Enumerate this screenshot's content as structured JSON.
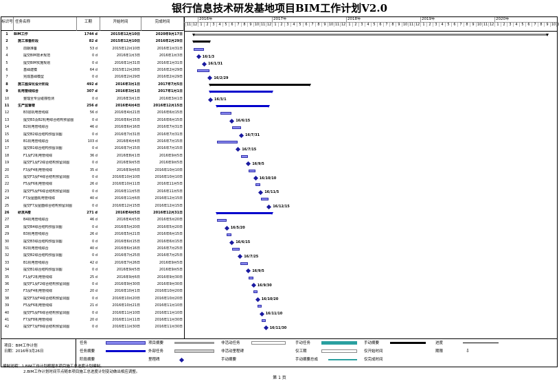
{
  "title": "银行信息技术研发基地项目BIM工作计划V2.0",
  "header": {
    "id": "标识号",
    "name": "任务名称",
    "duration": "工期",
    "start": "开始时间",
    "finish": "完成时间"
  },
  "years": [
    "2016年",
    "2017年",
    "2018年",
    "2019年",
    "2020年"
  ],
  "months": [
    "11",
    "12",
    "1",
    "2",
    "3",
    "4",
    "5",
    "6",
    "7",
    "8",
    "9",
    "10",
    "11",
    "12",
    "1",
    "2",
    "3",
    "4",
    "5",
    "6",
    "7",
    "8",
    "9",
    "10",
    "11",
    "12",
    "1",
    "2",
    "3",
    "4",
    "5",
    "6",
    "7",
    "8",
    "9",
    "10",
    "11",
    "12",
    "1",
    "2",
    "3",
    "4",
    "5",
    "6",
    "7",
    "8",
    "9",
    "10",
    "11",
    "12",
    "1",
    "2",
    "3",
    "4",
    "5",
    "6",
    "7",
    "8",
    "9",
    "10",
    "11"
  ],
  "tasks": [
    {
      "id": "1",
      "name": "BIM工作",
      "dur": "1744 d",
      "start": "2015年12月10日",
      "finish": "2020年9月17日",
      "bold": true
    },
    {
      "id": "2",
      "name": "施工准备阶段",
      "dur": "82 d",
      "start": "2015年12月10日",
      "finish": "2016年2月29日",
      "bold": true
    },
    {
      "id": "3",
      "name": "前期准备",
      "dur": "53 d",
      "start": "2015年12月10日",
      "finish": "2016年1月31日"
    },
    {
      "id": "4",
      "name": "提交BIM技术规范",
      "dur": "0 d",
      "start": "2016年1月3日",
      "finish": "2016年1月3日"
    },
    {
      "id": "5",
      "name": "提交BIM实施规划",
      "dur": "0 d",
      "start": "2016年1月31日",
      "finish": "2016年1月31日"
    },
    {
      "id": "6",
      "name": "基础建模",
      "dur": "64 d",
      "start": "2015年12月28日",
      "finish": "2016年2月29日"
    },
    {
      "id": "7",
      "name": "完成基础模型",
      "dur": "0 d",
      "start": "2016年2月29日",
      "finish": "2016年2月29日"
    },
    {
      "id": "8",
      "name": "施工图深化设计阶段",
      "dur": "492 d",
      "start": "2016年3月1日",
      "finish": "2017年7月5日",
      "bold": true
    },
    {
      "id": "9",
      "name": "机电管线综合",
      "dur": "307 d",
      "start": "2016年3月1日",
      "finish": "2017年1月1日",
      "bold": true
    },
    {
      "id": "10",
      "name": "整理全专业碰撞检测",
      "dur": "0 d",
      "start": "2016年3月1日",
      "finish": "2016年3月1日"
    },
    {
      "id": "11",
      "name": "生产监督楼",
      "dur": "256 d",
      "start": "2016年4月4日",
      "finish": "2016年12月15日",
      "bold": true
    },
    {
      "id": "12",
      "name": "B3层机电管线综",
      "dur": "56 d",
      "start": "2016年4月21日",
      "finish": "2016年6月15日"
    },
    {
      "id": "13",
      "name": "提交B3及B2机电综合结构预留图",
      "dur": "0 d",
      "start": "2016年6月15日",
      "finish": "2016年6月15日"
    },
    {
      "id": "14",
      "name": "B2机电管线综合",
      "dur": "46 d",
      "start": "2016年6月16日",
      "finish": "2016年7月31日"
    },
    {
      "id": "15",
      "name": "提交B2综合结构预留洞图",
      "dur": "0 d",
      "start": "2016年7月31日",
      "finish": "2016年7月31日"
    },
    {
      "id": "16",
      "name": "B1机电管线综合",
      "dur": "103 d",
      "start": "2016年4月4日",
      "finish": "2016年7月15日"
    },
    {
      "id": "17",
      "name": "提交B1综合结构预留洞图",
      "dur": "0 d",
      "start": "2016年7月15日",
      "finish": "2016年7月15日"
    },
    {
      "id": "18",
      "name": "F1及F2机电管线综",
      "dur": "36 d",
      "start": "2016年8月1日",
      "finish": "2016年9月5日"
    },
    {
      "id": "19",
      "name": "提交F1及F2综合结构预留洞图",
      "dur": "0 d",
      "start": "2016年9月5日",
      "finish": "2016年9月5日"
    },
    {
      "id": "20",
      "name": "F3及F4机电管线综",
      "dur": "35 d",
      "start": "2016年9月6日",
      "finish": "2016年10月10日"
    },
    {
      "id": "21",
      "name": "提交F3及F4综合结构预留洞图",
      "dur": "0 d",
      "start": "2016年10月10日",
      "finish": "2016年10月10日"
    },
    {
      "id": "22",
      "name": "F5及F6机电管线综",
      "dur": "26 d",
      "start": "2016年10月11日",
      "finish": "2016年11月5日"
    },
    {
      "id": "23",
      "name": "提交F5及F6综合结构预留洞图",
      "dur": "0 d",
      "start": "2016年11月5日",
      "finish": "2016年11月5日"
    },
    {
      "id": "24",
      "name": "F7及屋面机电管线综",
      "dur": "40 d",
      "start": "2016年11月6日",
      "finish": "2016年12月15日"
    },
    {
      "id": "25",
      "name": "提交F7及屋面综合结构预留洞图",
      "dur": "0 d",
      "start": "2016年12月15日",
      "finish": "2016年12月15日"
    },
    {
      "id": "26",
      "name": "研发A楼",
      "dur": "271 d",
      "start": "2016年4月5日",
      "finish": "2016年12月31日",
      "bold": true
    },
    {
      "id": "27",
      "name": "B4机电管线综合",
      "dur": "46 d",
      "start": "2016年4月5日",
      "finish": "2016年5月20日"
    },
    {
      "id": "28",
      "name": "提交B4综合结构预留洞图",
      "dur": "0 d",
      "start": "2016年5月20日",
      "finish": "2016年5月20日"
    },
    {
      "id": "29",
      "name": "B3机电管线综合",
      "dur": "26 d",
      "start": "2016年5月21日",
      "finish": "2016年6月15日"
    },
    {
      "id": "30",
      "name": "提交B3综合结构预留洞图",
      "dur": "0 d",
      "start": "2016年6月15日",
      "finish": "2016年6月15日"
    },
    {
      "id": "31",
      "name": "B2机电管线综合",
      "dur": "40 d",
      "start": "2016年6月16日",
      "finish": "2016年7月25日"
    },
    {
      "id": "32",
      "name": "提交B2综合结构预留洞图",
      "dur": "0 d",
      "start": "2016年7月25日",
      "finish": "2016年7月25日"
    },
    {
      "id": "33",
      "name": "B1机电管线综合",
      "dur": "42 d",
      "start": "2016年7月26日",
      "finish": "2016年9月5日"
    },
    {
      "id": "34",
      "name": "提交B1综合结构预留洞图",
      "dur": "0 d",
      "start": "2016年9月5日",
      "finish": "2016年9月5日"
    },
    {
      "id": "35",
      "name": "F1及F2机电管线综",
      "dur": "25 d",
      "start": "2016年9月6日",
      "finish": "2016年9月30日"
    },
    {
      "id": "36",
      "name": "提交F1及F2综合结构预留洞图",
      "dur": "0 d",
      "start": "2016年9月30日",
      "finish": "2016年9月30日"
    },
    {
      "id": "37",
      "name": "F3及F4机电管线综",
      "dur": "20 d",
      "start": "2016年10月1日",
      "finish": "2016年10月20日"
    },
    {
      "id": "38",
      "name": "提交F3及F4综合结构预留洞图",
      "dur": "0 d",
      "start": "2016年10月20日",
      "finish": "2016年10月20日"
    },
    {
      "id": "39",
      "name": "F5及F6机电管线综",
      "dur": "21 d",
      "start": "2016年10月21日",
      "finish": "2016年11月10日"
    },
    {
      "id": "40",
      "name": "提交F5及F6综合结构预留洞图",
      "dur": "0 d",
      "start": "2016年11月10日",
      "finish": "2016年11月10日"
    },
    {
      "id": "41",
      "name": "F7及F8机电管线综",
      "dur": "20 d",
      "start": "2016年11月11日",
      "finish": "2016年11月30日"
    },
    {
      "id": "42",
      "name": "提交F7及F8综合结构预留洞图",
      "dur": "0 d",
      "start": "2016年11月30日",
      "finish": "2016年11月30日"
    }
  ],
  "milestones": [
    {
      "row": 3,
      "label": "16/1/3"
    },
    {
      "row": 4,
      "label": "16/1/31"
    },
    {
      "row": 6,
      "label": "16/2/29"
    },
    {
      "row": 9,
      "label": "16/3/1"
    },
    {
      "row": 12,
      "label": "16/6/15"
    },
    {
      "row": 14,
      "label": "16/7/31"
    },
    {
      "row": 16,
      "label": "16/7/15"
    },
    {
      "row": 18,
      "label": "16/9/5"
    },
    {
      "row": 20,
      "label": "16/10/10"
    },
    {
      "row": 22,
      "label": "16/11/5"
    },
    {
      "row": 24,
      "label": "16/12/15"
    },
    {
      "row": 27,
      "label": "16/5/20"
    },
    {
      "row": 29,
      "label": "16/6/15"
    },
    {
      "row": 31,
      "label": "16/7/25"
    },
    {
      "row": 33,
      "label": "16/9/5"
    },
    {
      "row": 35,
      "label": "16/9/30"
    },
    {
      "row": 37,
      "label": "16/10/20"
    },
    {
      "row": 39,
      "label": "16/11/10"
    },
    {
      "row": 41,
      "label": "16/11/30"
    }
  ],
  "project": {
    "name_label": "项目：BIM工作计划",
    "date_label": "日期：2016年3月26日"
  },
  "legend": [
    "任务",
    "项目摘要",
    "非活动任务",
    "手动任务",
    "手动摘要",
    "进度",
    "任务摘要",
    "外部任务",
    "非活动里程碑",
    "仅工期",
    "仅开始时间",
    "期限",
    "阶段摘要",
    "里程碑",
    "手动摘要",
    "手动摘要总成",
    "仅完成时间"
  ],
  "notes": [
    "编制说明：1.BIM工作计划根据本项目施工总进度计划编制。",
    "2.BIM工作计划时间节点随本项目施工总进度计划变动做出相应调整。"
  ],
  "page": "第 1 页",
  "colors": {
    "task": "#8a8af0",
    "summary": "#0000cc",
    "project": "#000000",
    "milestone": "#1a1aa0",
    "manual": "#2aa0a0"
  }
}
